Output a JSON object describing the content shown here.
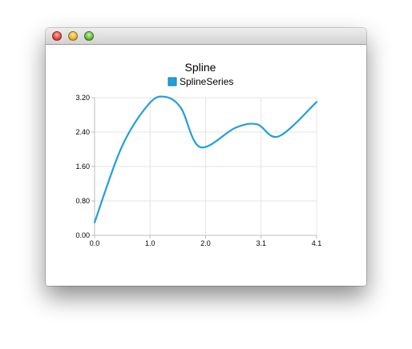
{
  "window": {
    "controls": [
      "close-button",
      "minimize-button",
      "zoom-button"
    ]
  },
  "chart_data": {
    "type": "line",
    "title": "Spline",
    "legend": {
      "placement": "top",
      "entries": [
        "SplineSeries"
      ]
    },
    "series": [
      {
        "name": "SplineSeries",
        "color": "#209fdf",
        "points": [
          [
            0.0,
            0.3
          ],
          [
            0.5,
            2.05
          ],
          [
            1.0,
            3.05
          ],
          [
            1.3,
            3.22
          ],
          [
            1.6,
            2.95
          ],
          [
            1.95,
            2.05
          ],
          [
            2.6,
            2.5
          ],
          [
            3.0,
            2.58
          ],
          [
            3.4,
            2.3
          ],
          [
            4.1,
            3.1
          ]
        ]
      }
    ],
    "xlim": [
      0.0,
      4.1
    ],
    "ylim": [
      0.0,
      3.2
    ],
    "xticks": [
      "0.0",
      "1.0",
      "2.0",
      "3.1",
      "4.1"
    ],
    "yticks": [
      "0.00",
      "0.80",
      "1.60",
      "2.40",
      "3.20"
    ],
    "xlabel": "",
    "ylabel": "",
    "grid": true,
    "colors": {
      "series": "#209fdf",
      "grid": "#e4e4e4",
      "axis": "#bdbdbd"
    }
  }
}
